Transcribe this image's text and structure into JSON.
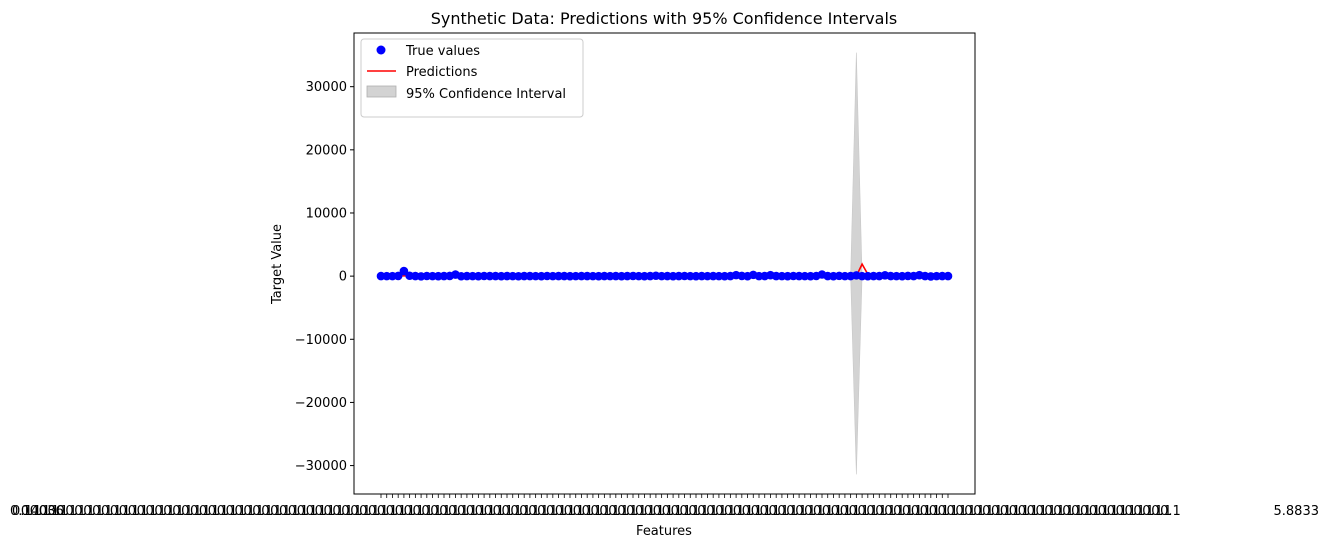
{
  "chart_data": {
    "type": "line",
    "title": "Synthetic Data: Predictions with 95% Confidence Intervals",
    "xlabel": "Features",
    "ylabel": "Target Value",
    "ylim": [
      -34500,
      38500
    ],
    "yticks": [
      -30000,
      -20000,
      -10000,
      0,
      10000,
      20000,
      30000
    ],
    "ytick_labels": [
      "−30000",
      "−20000",
      "−10000",
      "0",
      "10000",
      "20000",
      "30000"
    ],
    "n_points": 100,
    "xtick_label_left": "0.14036",
    "xtick_label_right": "5.8833",
    "legend_position": "upper-left",
    "series": [
      {
        "name": "True values",
        "kind": "scatter",
        "color": "#0000ff",
        "values": [
          10,
          0,
          0,
          25,
          800,
          60,
          10,
          -40,
          20,
          0,
          -15,
          10,
          30,
          250,
          -20,
          15,
          0,
          -10,
          20,
          5,
          10,
          -5,
          15,
          0,
          -20,
          10,
          5,
          0,
          -10,
          20,
          0,
          15,
          5,
          -10,
          0,
          10,
          5,
          0,
          -5,
          15,
          0,
          10,
          -10,
          5,
          20,
          0,
          -5,
          10,
          60,
          0,
          10,
          -10,
          5,
          20,
          0,
          -15,
          10,
          0,
          5,
          0,
          -10,
          5,
          160,
          30,
          -10,
          200,
          0,
          5,
          150,
          10,
          0,
          -10,
          20,
          5,
          0,
          -5,
          20,
          260,
          10,
          -15,
          40,
          0,
          5,
          120,
          0,
          -10,
          15,
          5,
          130,
          10,
          0,
          -10,
          25,
          5,
          150,
          10,
          -50,
          0,
          5,
          10
        ]
      },
      {
        "name": "Predictions",
        "kind": "line",
        "color": "#ff0000",
        "values": [
          10,
          10,
          10,
          20,
          40,
          50,
          30,
          10,
          20,
          10,
          10,
          10,
          20,
          40,
          20,
          10,
          10,
          10,
          10,
          10,
          10,
          10,
          10,
          10,
          10,
          10,
          10,
          10,
          10,
          10,
          10,
          10,
          10,
          10,
          10,
          10,
          10,
          10,
          10,
          10,
          10,
          10,
          10,
          10,
          10,
          10,
          10,
          10,
          20,
          10,
          10,
          10,
          10,
          10,
          10,
          10,
          10,
          10,
          10,
          10,
          10,
          10,
          30,
          30,
          20,
          40,
          20,
          20,
          30,
          20,
          10,
          10,
          10,
          10,
          10,
          10,
          10,
          40,
          20,
          10,
          20,
          10,
          10,
          30,
          1900,
          300,
          10,
          10,
          30,
          10,
          10,
          10,
          10,
          10,
          30,
          20,
          10,
          10,
          10,
          10
        ]
      },
      {
        "name": "95% Confidence Interval",
        "kind": "band",
        "color": "#d3d3d3",
        "spike_index": 83,
        "spike_lower": -31400,
        "spike_upper": 35400
      }
    ]
  }
}
